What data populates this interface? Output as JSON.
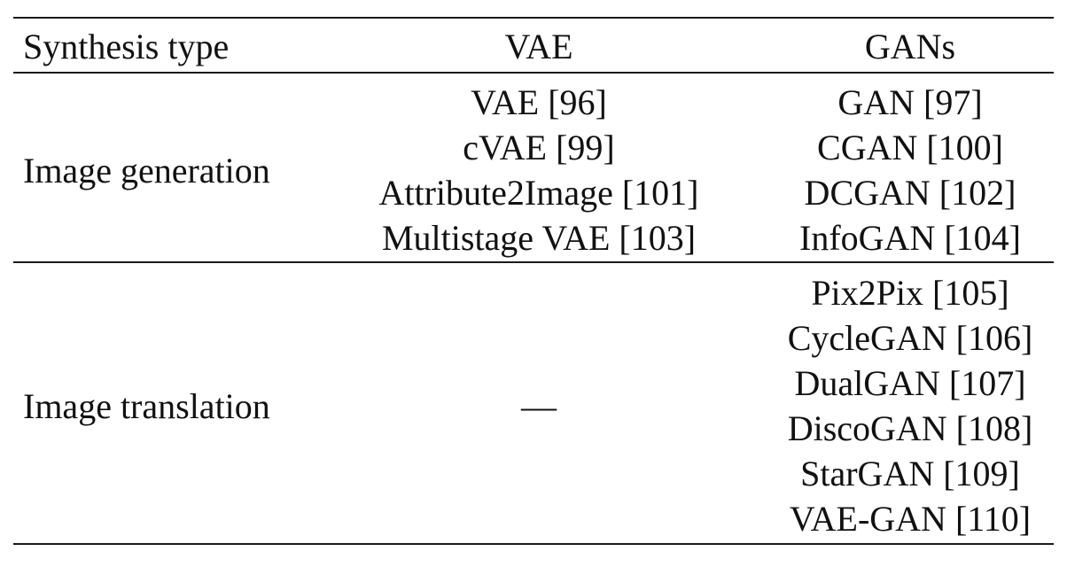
{
  "table": {
    "headers": {
      "type": "Synthesis type",
      "vae": "VAE",
      "gans": "GANs"
    },
    "rows": [
      {
        "type": "Image generation",
        "vae": [
          "VAE [96]",
          "cVAE [99]",
          "Attribute2Image [101]",
          "Multistage VAE [103]"
        ],
        "gans": [
          "GAN [97]",
          "CGAN [100]",
          "DCGAN [102]",
          "InfoGAN [104]"
        ]
      },
      {
        "type": "Image translation",
        "vae": [
          "—"
        ],
        "gans": [
          "Pix2Pix [105]",
          "CycleGAN [106]",
          "DualGAN [107]",
          "DiscoGAN [108]",
          "StarGAN [109]",
          "VAE-GAN [110]"
        ]
      }
    ]
  }
}
